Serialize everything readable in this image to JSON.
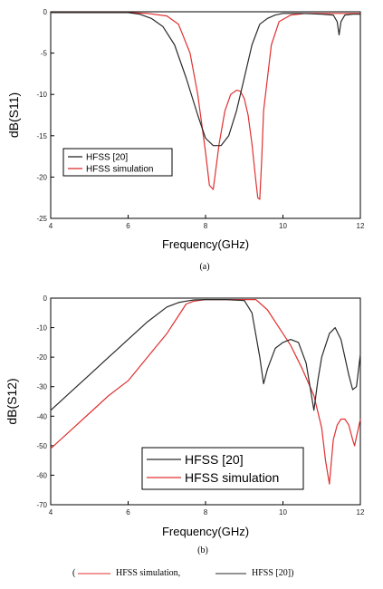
{
  "chart_data": [
    {
      "type": "line",
      "xlabel": "Frequency(GHz)",
      "ylabel": "dB(S11)",
      "caption": "(a)",
      "xlim": [
        4,
        12
      ],
      "ylim": [
        -25,
        0
      ],
      "xticks": [
        4,
        6,
        8,
        10,
        12
      ],
      "yticks": [
        0,
        -5,
        -10,
        -15,
        -20,
        -25
      ],
      "grid": false,
      "legend_position": "lower-left",
      "series": [
        {
          "name": "HFSS [20]",
          "color": "#2a2a2a",
          "x": [
            4,
            5,
            6,
            6.3,
            6.6,
            6.9,
            7.2,
            7.5,
            7.8,
            8.0,
            8.2,
            8.4,
            8.6,
            8.8,
            9.0,
            9.2,
            9.4,
            9.6,
            9.8,
            10.0,
            10.5,
            11.0,
            11.3,
            11.4,
            11.45,
            11.5,
            11.6,
            11.8,
            12
          ],
          "y": [
            -0.1,
            -0.1,
            -0.1,
            -0.3,
            -0.8,
            -1.8,
            -4.0,
            -8.0,
            -12.5,
            -15.3,
            -16.2,
            -16.2,
            -15.0,
            -12.0,
            -8.0,
            -4.0,
            -1.5,
            -0.8,
            -0.4,
            -0.2,
            -0.2,
            -0.3,
            -0.4,
            -1.2,
            -2.8,
            -1.2,
            -0.4,
            -0.3,
            -0.3
          ]
        },
        {
          "name": "HFSS simulation",
          "color": "#e03030",
          "x": [
            4,
            5,
            6,
            6.5,
            7.0,
            7.3,
            7.6,
            7.8,
            8.0,
            8.1,
            8.2,
            8.35,
            8.5,
            8.65,
            8.8,
            8.9,
            9.0,
            9.1,
            9.2,
            9.3,
            9.35,
            9.4,
            9.45,
            9.5,
            9.7,
            9.9,
            10.2,
            10.6,
            11,
            12
          ],
          "y": [
            -0.1,
            -0.1,
            -0.1,
            -0.2,
            -0.5,
            -1.5,
            -5.0,
            -10.0,
            -17.0,
            -21.0,
            -21.5,
            -16.0,
            -12.0,
            -10.0,
            -9.5,
            -9.6,
            -10.5,
            -12.5,
            -16.0,
            -20.5,
            -22.5,
            -22.7,
            -18.0,
            -12.0,
            -4.0,
            -1.2,
            -0.4,
            -0.2,
            -0.2,
            -0.2
          ]
        }
      ]
    },
    {
      "type": "line",
      "xlabel": "Frequency(GHz)",
      "ylabel": "dB(S12)",
      "caption": "(b)",
      "xlim": [
        4,
        12
      ],
      "ylim": [
        -70,
        0
      ],
      "xticks": [
        4,
        6,
        8,
        10,
        12
      ],
      "yticks": [
        0,
        -10,
        -20,
        -30,
        -40,
        -50,
        -60,
        -70
      ],
      "grid": false,
      "legend_position": "lower-right",
      "series": [
        {
          "name": "HFSS [20]",
          "color": "#2a2a2a",
          "x": [
            4,
            4.5,
            5,
            5.5,
            6,
            6.5,
            7.0,
            7.3,
            7.5,
            7.7,
            8.0,
            8.5,
            9.0,
            9.2,
            9.4,
            9.5,
            9.6,
            9.8,
            10.0,
            10.2,
            10.4,
            10.6,
            10.7,
            10.8,
            10.9,
            11.0,
            11.2,
            11.35,
            11.5,
            11.7,
            11.8,
            11.9,
            12
          ],
          "y": [
            -38,
            -32,
            -26,
            -20,
            -14,
            -8,
            -3,
            -1.5,
            -1,
            -0.6,
            -0.5,
            -0.5,
            -0.8,
            -5,
            -20,
            -29,
            -24,
            -17,
            -15,
            -14,
            -15,
            -22,
            -30,
            -38,
            -28,
            -20,
            -12,
            -10,
            -14,
            -26,
            -31,
            -30,
            -19
          ]
        },
        {
          "name": "HFSS simulation",
          "color": "#e03030",
          "x": [
            4,
            4.5,
            5,
            5.5,
            6,
            6.5,
            7.0,
            7.3,
            7.5,
            7.7,
            8.0,
            8.5,
            9.0,
            9.3,
            9.6,
            9.9,
            10.2,
            10.5,
            10.8,
            11.0,
            11.1,
            11.2,
            11.3,
            11.4,
            11.5,
            11.6,
            11.7,
            11.8,
            11.85,
            11.9,
            12
          ],
          "y": [
            -51,
            -45,
            -39,
            -33,
            -28,
            -20,
            -12,
            -6,
            -2,
            -1,
            -0.5,
            -0.5,
            -0.5,
            -0.5,
            -4,
            -10,
            -16,
            -24,
            -33,
            -44,
            -55,
            -63,
            -48,
            -43,
            -41,
            -41,
            -43,
            -48,
            -50,
            -47,
            -41
          ]
        }
      ]
    }
  ],
  "footer": {
    "paren_open": "(",
    "simulation_label": "HFSS simulation,",
    "reference_label": "HFSS [20])",
    "simulation_color": "#e03030",
    "reference_color": "#2a2a2a"
  }
}
